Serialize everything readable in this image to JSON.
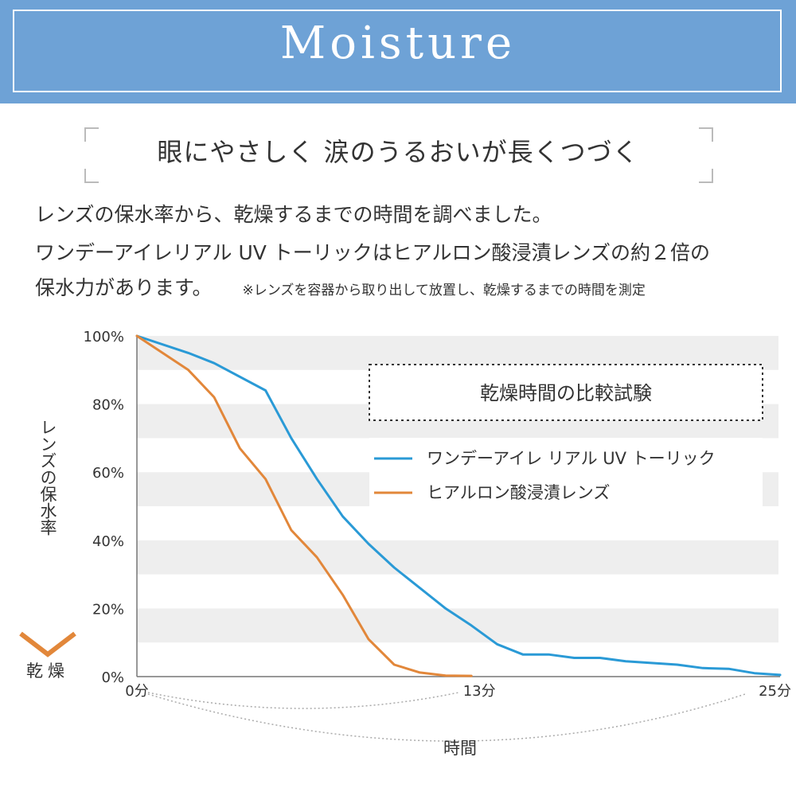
{
  "header": {
    "title": "Moisture",
    "tagline": "眼にやさしく 涙のうるおいが長くつづく"
  },
  "description": {
    "line1": "レンズの保水率から、乾燥するまでの時間を調べました。",
    "line2": "ワンデーアイレリアル UV トーリックはヒアルロン酸浸漬レンズの約２倍の",
    "line3": "保水力があります。",
    "note": "※レンズを容器から取り出して放置し、乾燥するまでの時間を測定"
  },
  "colors": {
    "banner": "#6ea2d6",
    "series_blue": "#2a9ad6",
    "series_orange": "#e2873a",
    "band": "#eeeeee"
  },
  "chart_data": {
    "type": "line",
    "title": "乾燥時間の比較試験",
    "xlabel": "時間",
    "ylabel": "レンズの保水率",
    "y_bottom_label": "乾燥",
    "xlim": [
      0,
      25
    ],
    "ylim": [
      0,
      100
    ],
    "x_ticks": [
      {
        "value": 0,
        "label": "0分"
      },
      {
        "value": 13,
        "label": "13分"
      },
      {
        "value": 25,
        "label": "25分"
      }
    ],
    "y_ticks": [
      {
        "value": 0,
        "label": "0%"
      },
      {
        "value": 20,
        "label": "20%"
      },
      {
        "value": 40,
        "label": "40%"
      },
      {
        "value": 60,
        "label": "60%"
      },
      {
        "value": 80,
        "label": "80%"
      },
      {
        "value": 100,
        "label": "100%"
      }
    ],
    "grid": "alternating horizontal bands",
    "legend_position": "top-right",
    "series": [
      {
        "name": "ワンデーアイレ リアル UV トーリック",
        "color": "#2a9ad6",
        "x": [
          0,
          2,
          3,
          5,
          6,
          7,
          8,
          9,
          10,
          11,
          12,
          13,
          14,
          15,
          16,
          17,
          18,
          19,
          20,
          21,
          22,
          23,
          24,
          25
        ],
        "y": [
          100,
          95,
          92,
          84,
          70,
          58,
          47,
          39,
          32,
          26,
          20,
          15,
          9.5,
          6.5,
          6.5,
          5.5,
          5.5,
          4.5,
          4,
          3.5,
          2.5,
          2.3,
          1,
          0.5
        ]
      },
      {
        "name": "ヒアルロン酸浸漬レンズ",
        "color": "#e2873a",
        "x": [
          0,
          2,
          3,
          4,
          5,
          6,
          7,
          8,
          9,
          10,
          11,
          12,
          13
        ],
        "y": [
          100,
          90,
          82,
          67,
          58,
          43,
          35,
          24,
          11,
          3.5,
          1.2,
          0.3,
          0.2
        ]
      }
    ]
  }
}
